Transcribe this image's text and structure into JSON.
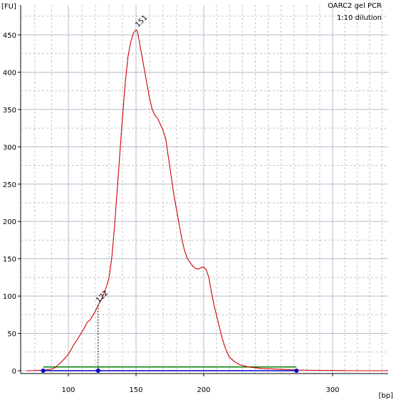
{
  "chart_data": {
    "type": "line",
    "title": "OARC2 gel PCR",
    "subtitle": "1:10 dilution",
    "ylabel": "[FU]",
    "xlabel": "[bp]",
    "x_scale": "nonlinear (bp ticks at 100, 150, 200, 300)",
    "x_ticks": [
      {
        "label": "100",
        "value": 100
      },
      {
        "label": "150",
        "value": 150
      },
      {
        "label": "200",
        "value": 200
      },
      {
        "label": "300",
        "value": 300
      }
    ],
    "x_extent_bp": [
      75,
      345
    ],
    "y_ticks": [
      0,
      50,
      100,
      150,
      200,
      250,
      300,
      350,
      400,
      450
    ],
    "ylim": [
      -10,
      480
    ],
    "grid": true,
    "colors": {
      "trace": "#cc0000",
      "region": "#008000",
      "markers": "#0000cc",
      "axis_text": "#000000",
      "major_grid": "#b4bccf",
      "minor_grid": "#c4c4c4"
    },
    "series": [
      {
        "points": [
          [
            75,
            0
          ],
          [
            78,
            0
          ],
          [
            82,
            0.5
          ],
          [
            86,
            1
          ],
          [
            90,
            2
          ],
          [
            92,
            4
          ],
          [
            94,
            8
          ],
          [
            96,
            12
          ],
          [
            98,
            17
          ],
          [
            100,
            22
          ],
          [
            102,
            28
          ],
          [
            104,
            35
          ],
          [
            106,
            40
          ],
          [
            108,
            46
          ],
          [
            110,
            52
          ],
          [
            112,
            58
          ],
          [
            114,
            65
          ],
          [
            116,
            68
          ],
          [
            118,
            74
          ],
          [
            120,
            80
          ],
          [
            122,
            88
          ],
          [
            124,
            94
          ],
          [
            126,
            102
          ],
          [
            128,
            112
          ],
          [
            130,
            124
          ],
          [
            132,
            150
          ],
          [
            134,
            190
          ],
          [
            136,
            240
          ],
          [
            138,
            290
          ],
          [
            140,
            340
          ],
          [
            142,
            385
          ],
          [
            144,
            420
          ],
          [
            146,
            440
          ],
          [
            148,
            452
          ],
          [
            150,
            457
          ],
          [
            151,
            455
          ],
          [
            152,
            445
          ],
          [
            154,
            425
          ],
          [
            156,
            405
          ],
          [
            158,
            385
          ],
          [
            160,
            365
          ],
          [
            162,
            350
          ],
          [
            164,
            342
          ],
          [
            166,
            338
          ],
          [
            168,
            330
          ],
          [
            170,
            322
          ],
          [
            172,
            310
          ],
          [
            174,
            285
          ],
          [
            176,
            260
          ],
          [
            178,
            235
          ],
          [
            180,
            215
          ],
          [
            182,
            195
          ],
          [
            184,
            175
          ],
          [
            186,
            160
          ],
          [
            188,
            150
          ],
          [
            190,
            145
          ],
          [
            192,
            140
          ],
          [
            194,
            137
          ],
          [
            196,
            136
          ],
          [
            198,
            138
          ],
          [
            200,
            139
          ],
          [
            202,
            135
          ],
          [
            204,
            125
          ],
          [
            206,
            105
          ],
          [
            208,
            88
          ],
          [
            210,
            74
          ],
          [
            212,
            60
          ],
          [
            214,
            46
          ],
          [
            216,
            34
          ],
          [
            218,
            25
          ],
          [
            220,
            18
          ],
          [
            224,
            12
          ],
          [
            228,
            8
          ],
          [
            235,
            5
          ],
          [
            245,
            3
          ],
          [
            260,
            2
          ],
          [
            272,
            1
          ],
          [
            285,
            0.5
          ],
          [
            300,
            0.3
          ],
          [
            315,
            0
          ],
          [
            345,
            0
          ]
        ]
      }
    ],
    "peaks": [
      {
        "label": "151",
        "x": 151,
        "y": 457
      },
      {
        "label": "122",
        "x": 122,
        "y": 88
      }
    ],
    "markers": [
      {
        "x": 85,
        "y": 0
      },
      {
        "x": 122,
        "y": 0
      },
      {
        "x": 272,
        "y": 0
      }
    ],
    "region": {
      "from": 85,
      "to": 272,
      "level": 5
    }
  }
}
